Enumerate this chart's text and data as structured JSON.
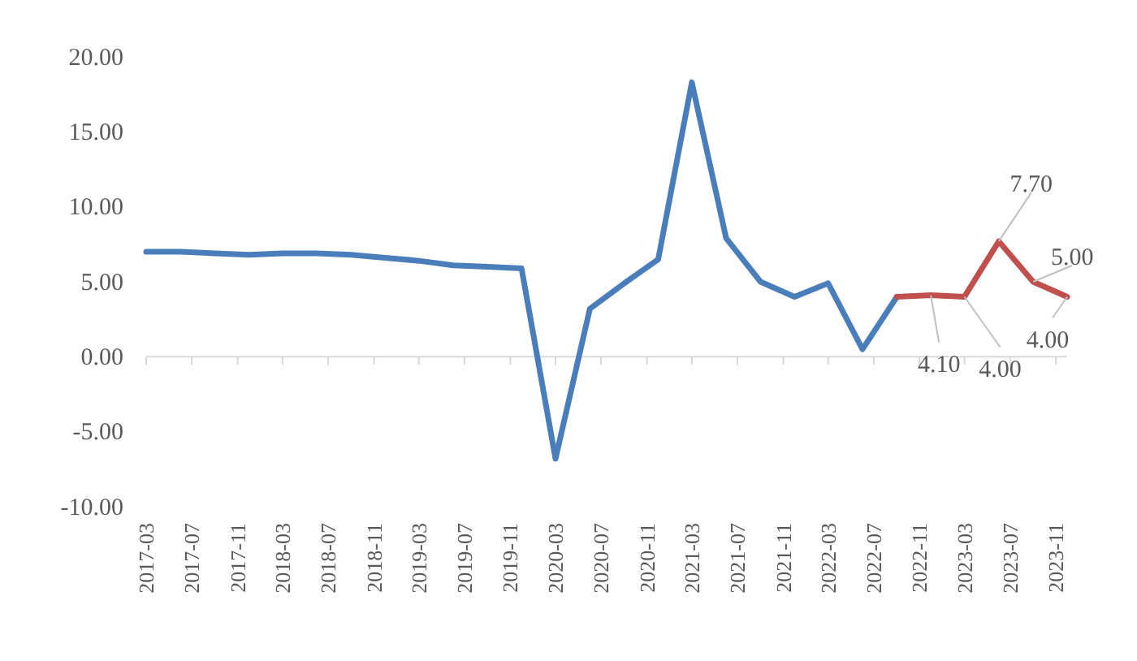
{
  "chart_data": {
    "type": "line",
    "x": [
      "2017-03",
      "2017-06",
      "2017-09",
      "2017-12",
      "2018-03",
      "2018-06",
      "2018-09",
      "2018-12",
      "2019-03",
      "2019-06",
      "2019-09",
      "2019-12",
      "2020-03",
      "2020-06",
      "2020-09",
      "2020-12",
      "2021-03",
      "2021-06",
      "2021-09",
      "2021-12",
      "2022-03",
      "2022-06",
      "2022-09",
      "2022-12",
      "2023-03",
      "2023-06",
      "2023-09",
      "2023-12"
    ],
    "series": [
      {
        "color": "#4a7ebb",
        "values": [
          7.0,
          7.0,
          6.9,
          6.8,
          6.9,
          6.9,
          6.8,
          6.6,
          6.4,
          6.1,
          6.0,
          5.9,
          -6.8,
          3.2,
          4.9,
          6.5,
          18.3,
          7.9,
          5.0,
          4.0,
          4.9,
          0.5,
          4.0,
          null,
          null,
          null,
          null,
          null
        ]
      },
      {
        "color": "#c0504d",
        "values": [
          null,
          null,
          null,
          null,
          null,
          null,
          null,
          null,
          null,
          null,
          null,
          null,
          null,
          null,
          null,
          null,
          null,
          null,
          null,
          null,
          null,
          null,
          4.0,
          4.1,
          4.0,
          7.7,
          5.0,
          4.0
        ],
        "value_labels": [
          null,
          null,
          null,
          null,
          null,
          null,
          null,
          null,
          null,
          null,
          null,
          null,
          null,
          null,
          null,
          null,
          null,
          null,
          null,
          null,
          null,
          null,
          null,
          "4.10",
          "4.00",
          "7.70",
          "5.00",
          "4.00"
        ]
      }
    ],
    "ylim": [
      -10,
      20
    ],
    "yticks": [
      {
        "value": -10,
        "label": "-10.00"
      },
      {
        "value": -5,
        "label": "-5.00"
      },
      {
        "value": 0,
        "label": "0.00"
      },
      {
        "value": 5,
        "label": "5.00"
      },
      {
        "value": 10,
        "label": "10.00"
      },
      {
        "value": 15,
        "label": "15.00"
      },
      {
        "value": 20,
        "label": "20.00"
      }
    ],
    "xlim": [
      "2017-03",
      "2023-12"
    ],
    "xticks": [
      "2017-03",
      "2017-07",
      "2017-11",
      "2018-03",
      "2018-07",
      "2018-11",
      "2019-03",
      "2019-07",
      "2019-11",
      "2020-03",
      "2020-07",
      "2020-11",
      "2021-03",
      "2021-07",
      "2021-11",
      "2022-03",
      "2022-07",
      "2022-11",
      "2023-03",
      "2023-07",
      "2023-11"
    ],
    "marker": "none",
    "line_style": "solid"
  }
}
